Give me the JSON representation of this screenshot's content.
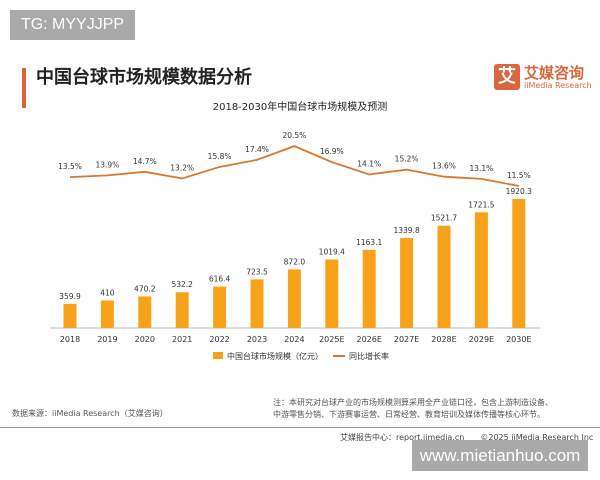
{
  "watermark_top": "TG: MYYJJPP",
  "header": {
    "title": "中国台球市场规模数据分析",
    "logo_cn": "艾媒咨询",
    "logo_en": "iiMedia Research",
    "logo_glyph": "艾"
  },
  "chart_data": {
    "type": "bar+line",
    "title": "2018-2030年中国台球市场规模及预测",
    "categories": [
      "2018",
      "2019",
      "2020",
      "2021",
      "2022",
      "2023",
      "2024",
      "2025E",
      "2026E",
      "2027E",
      "2028E",
      "2029E",
      "2030E"
    ],
    "series": [
      {
        "name": "中国台球市场规模（亿元）",
        "type": "bar",
        "color": "#f7a21b",
        "values": [
          359.9,
          410,
          470.2,
          532.2,
          616.4,
          723.5,
          872.0,
          1019.4,
          1163.1,
          1339.8,
          1521.7,
          1721.5,
          1920.3
        ],
        "labels": [
          "359.9",
          "410",
          "470.2",
          "532.2",
          "616.4",
          "723.5",
          "872.0",
          "1019.4",
          "1163.1",
          "1339.8",
          "1521.7",
          "1721.5",
          "1920.3"
        ]
      },
      {
        "name": "同比增长率",
        "type": "line",
        "color": "#d9772a",
        "values": [
          13.5,
          13.9,
          14.7,
          13.2,
          15.8,
          17.4,
          20.5,
          16.9,
          14.1,
          15.2,
          13.6,
          13.1,
          11.5
        ],
        "labels": [
          "13.5%",
          "13.9%",
          "14.7%",
          "13.2%",
          "15.8%",
          "17.4%",
          "20.5%",
          "16.9%",
          "14.1%",
          "15.2%",
          "13.6%",
          "13.1%",
          "11.5%"
        ]
      }
    ],
    "legend_position": "bottom",
    "grid": false
  },
  "footer": {
    "source": "数据来源：iiMedia Research（艾媒咨询）",
    "note_line1": "注：本研究对台球产业的市场规模测算采用全产业链口径，包含上游制造设备、",
    "note_line2": "中游零售分销、下游赛事运营、日常经营、教育培训及媒体传播等核心环节。",
    "report": "艾媒报告中心：report.iimedia.cn　　©2025 iiMedia Research Inc"
  },
  "watermark_bottom": "www.mietianhuo.com"
}
